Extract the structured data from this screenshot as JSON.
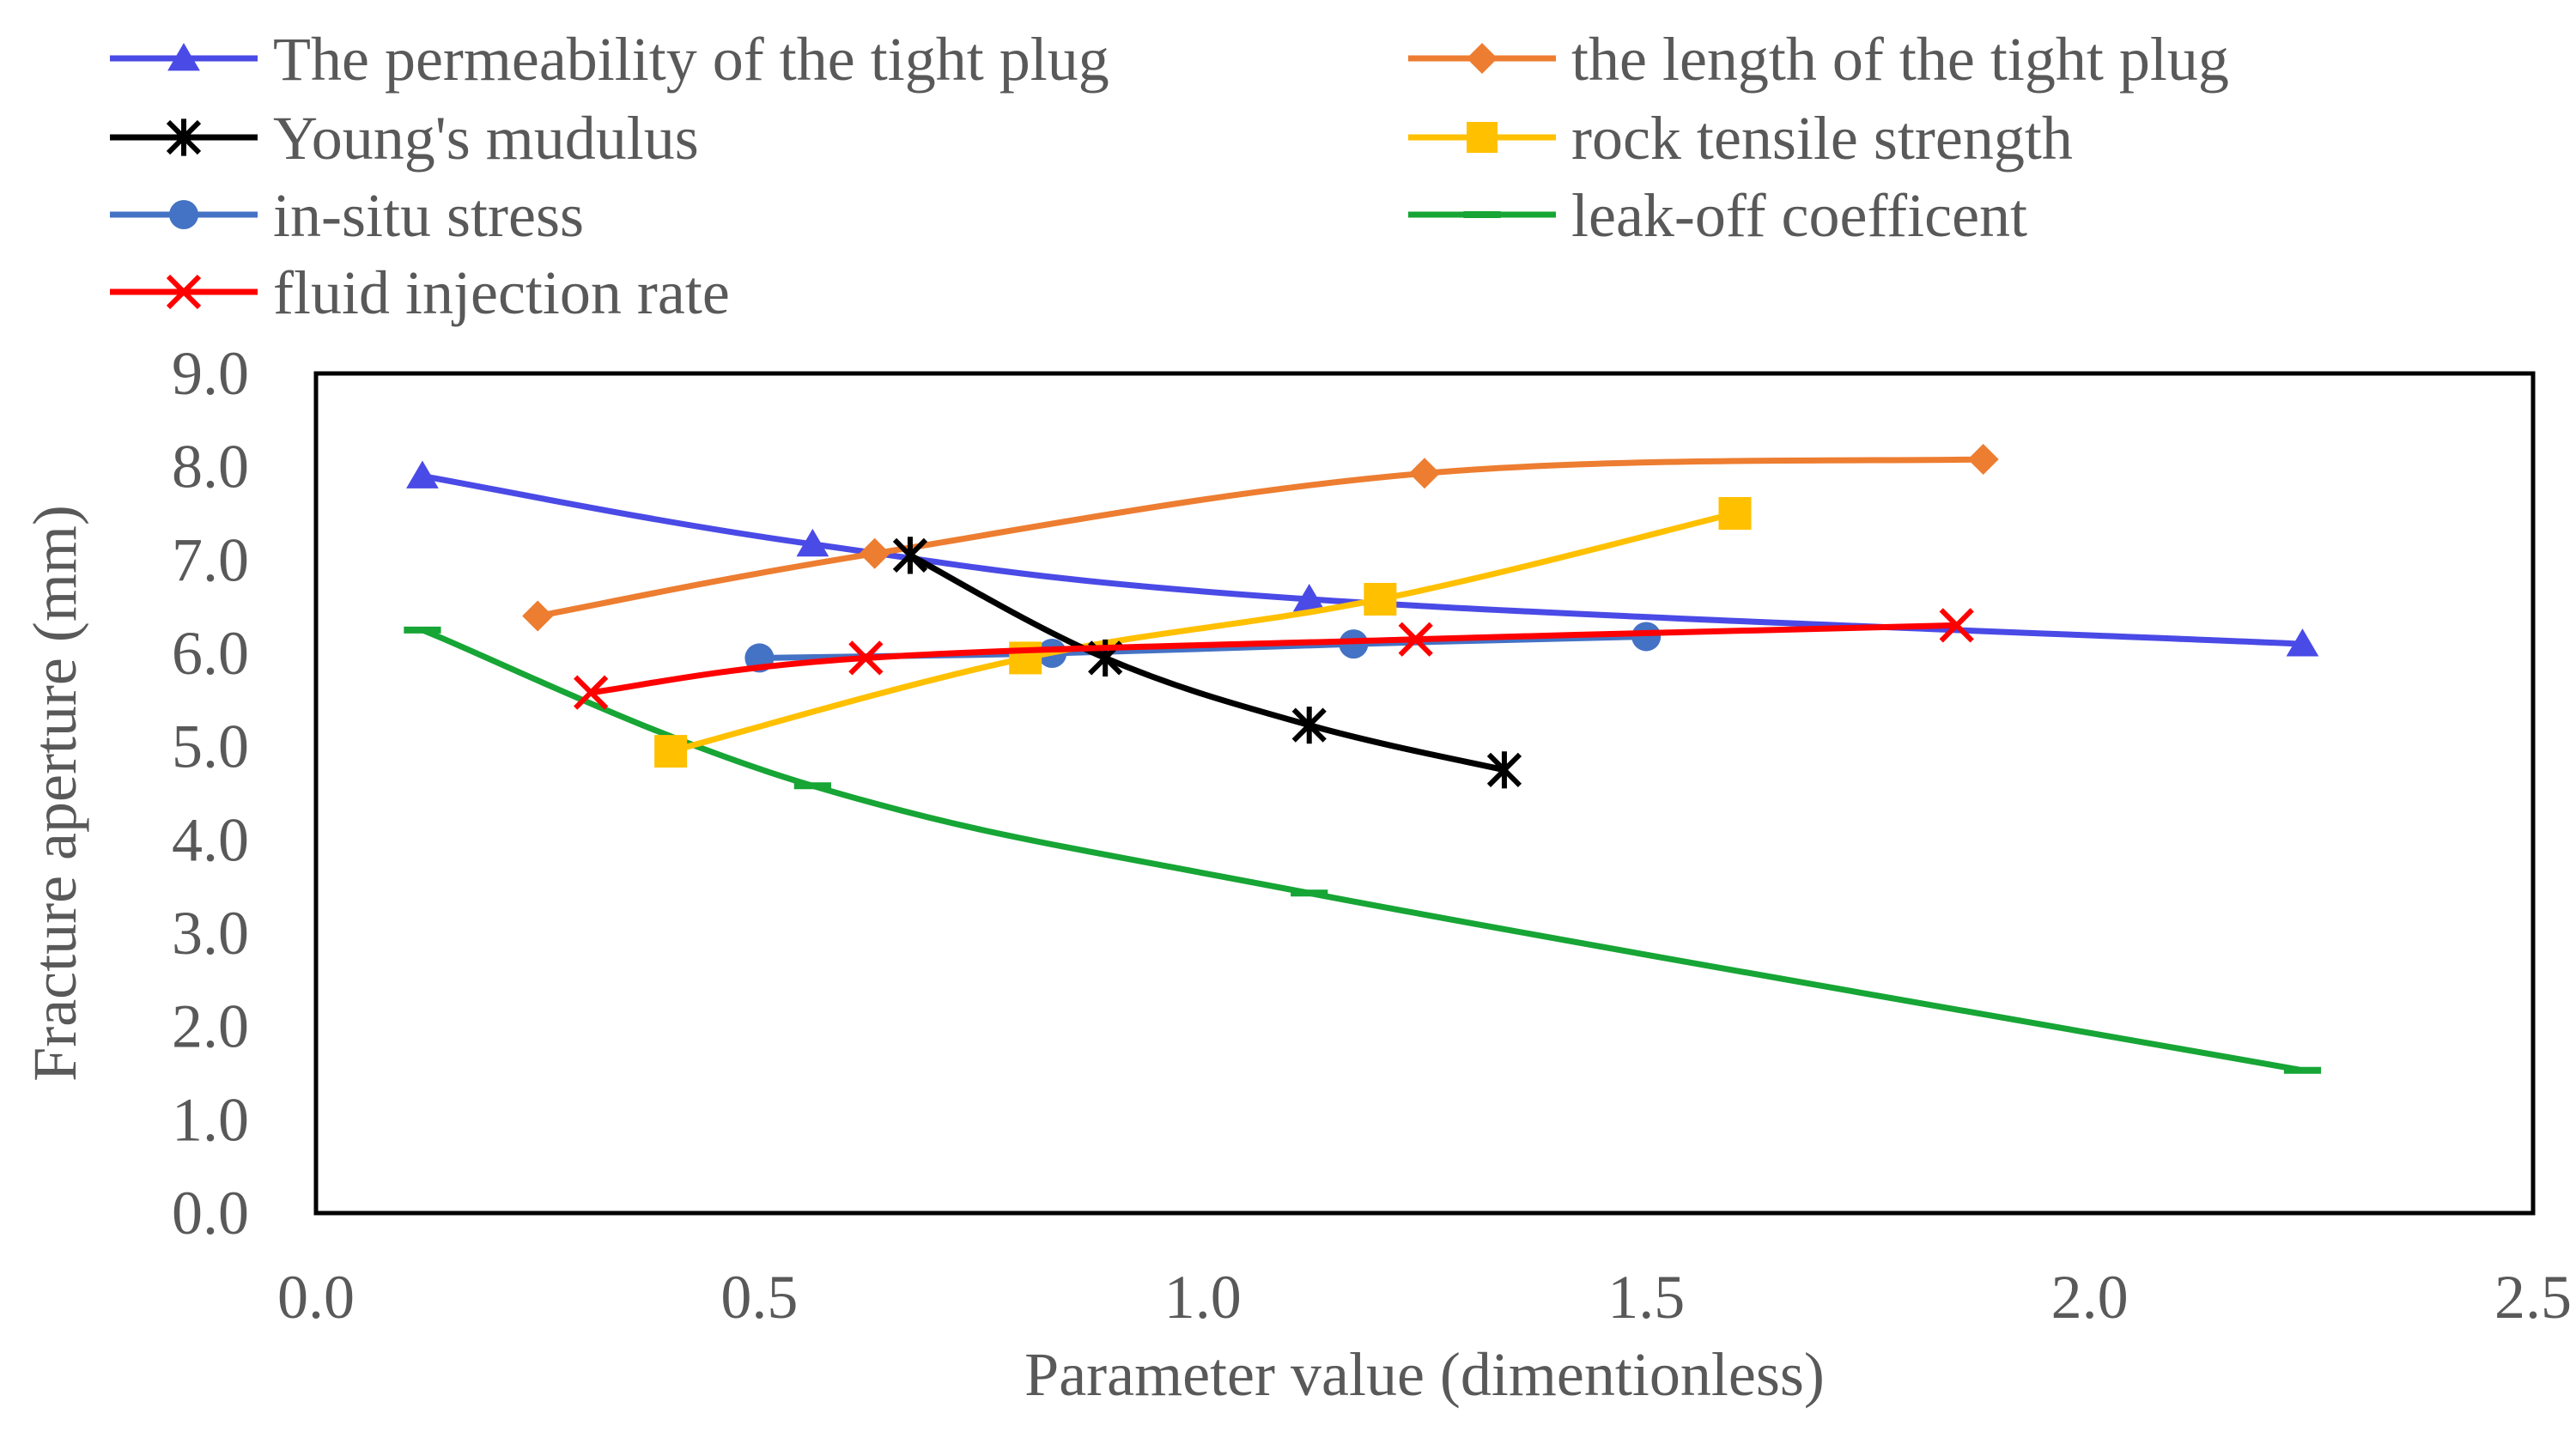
{
  "chart_data": {
    "type": "line",
    "title": "",
    "xlabel": "Parameter value (dimentionless)",
    "ylabel": "Fracture aperture (mm)",
    "xlim": [
      0.0,
      2.5
    ],
    "ylim": [
      0.0,
      9.0
    ],
    "x_ticks": [
      "0.0",
      "0.5",
      "1.0",
      "1.5",
      "2.0",
      "2.5"
    ],
    "y_ticks": [
      "0.0",
      "1.0",
      "2.0",
      "3.0",
      "4.0",
      "5.0",
      "6.0",
      "7.0",
      "8.0",
      "9.0"
    ],
    "grid": false,
    "legend_position": "top",
    "series": [
      {
        "name": "The permeability of the tight plug",
        "color": "#4A4AE6",
        "marker": "triangle",
        "x": [
          0.12,
          0.56,
          1.12,
          2.24
        ],
        "y": [
          7.9,
          7.17,
          6.58,
          6.1
        ]
      },
      {
        "name": "the length of the tight plug",
        "color": "#ED7D31",
        "marker": "diamond",
        "x": [
          0.25,
          0.63,
          1.25,
          1.88
        ],
        "y": [
          6.4,
          7.07,
          7.93,
          8.08
        ]
      },
      {
        "name": "Young's mudulus",
        "color": "#000000",
        "marker": "asterisk",
        "x": [
          0.67,
          0.89,
          1.12,
          1.34
        ],
        "y": [
          7.05,
          5.95,
          5.23,
          4.75
        ]
      },
      {
        "name": "rock tensile strength",
        "color": "#FFC000",
        "marker": "square",
        "x": [
          0.4,
          0.8,
          1.2,
          1.6
        ],
        "y": [
          4.95,
          5.95,
          6.58,
          7.5
        ]
      },
      {
        "name": "in-situ stress",
        "color": "#4472C4",
        "marker": "circle",
        "x": [
          0.5,
          0.83,
          1.17,
          1.5
        ],
        "y": [
          5.95,
          6.0,
          6.1,
          6.18
        ]
      },
      {
        "name": "leak-off coefficent",
        "color": "#17A535",
        "marker": "dash",
        "x": [
          0.12,
          0.56,
          1.12,
          2.24
        ],
        "y": [
          6.25,
          4.58,
          3.43,
          1.53
        ]
      },
      {
        "name": "fluid injection rate",
        "color": "#FF0000",
        "marker": "x",
        "x": [
          0.31,
          0.62,
          1.24,
          1.85
        ],
        "y": [
          5.58,
          5.95,
          6.15,
          6.3
        ]
      }
    ]
  }
}
